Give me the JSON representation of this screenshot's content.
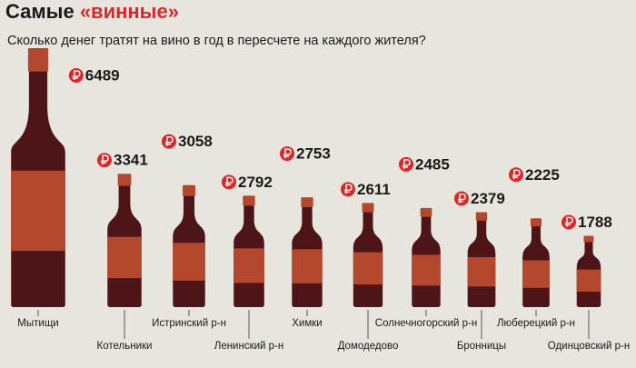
{
  "chart_data": {
    "type": "bottle",
    "title": "Самые «винные»",
    "subtitle": "Сколько денег тратят на вино в год в пересчете на каждого жителя?",
    "categories": [
      "Мытищи",
      "Котельники",
      "Истринский р-н",
      "Ленинский р-н",
      "Химки",
      "Домодедово",
      "Солнечногорский р-н",
      "Бронницы",
      "Люберецкий р-н",
      "Одинцовский р-н"
    ],
    "values": [
      6489,
      3341,
      3058,
      2792,
      2753,
      2611,
      2485,
      2379,
      2225,
      1788
    ],
    "color": "#4e1519",
    "label_color": "#b4482f",
    "icon_color": "#d8282a"
  }
}
